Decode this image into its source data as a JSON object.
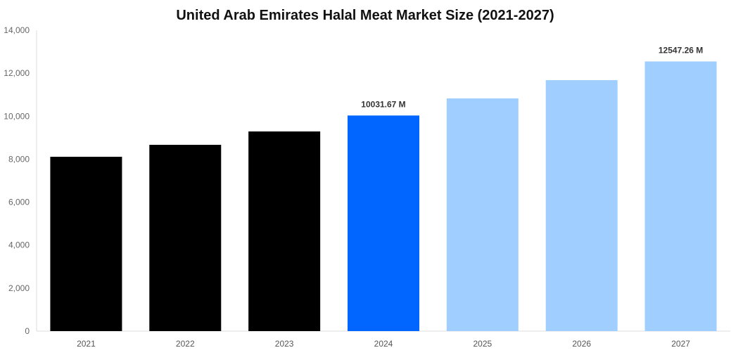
{
  "chart_data": {
    "type": "bar",
    "title": "United Arab Emirates Halal Meat Market Size (2021-2027)",
    "xlabel": "",
    "ylabel": "",
    "categories": [
      "2021",
      "2022",
      "2023",
      "2024",
      "2025",
      "2026",
      "2027"
    ],
    "values": [
      8112,
      8668,
      9290,
      10031.67,
      10828,
      11678,
      12547.26
    ],
    "bar_colors": [
      "#000000",
      "#000000",
      "#000000",
      "#0066ff",
      "#a0cfff",
      "#a0cfff",
      "#a0cfff"
    ],
    "data_labels": {
      "3": "10031.67 M",
      "6": "12547.26 M"
    },
    "ylim": [
      0,
      14000
    ],
    "yticks": [
      0,
      2000,
      4000,
      6000,
      8000,
      10000,
      12000,
      14000
    ],
    "ytick_labels": [
      "0",
      "2,000",
      "4,000",
      "6,000",
      "8,000",
      "10,000",
      "12,000",
      "14,000"
    ],
    "grid": false,
    "legend": "none"
  }
}
